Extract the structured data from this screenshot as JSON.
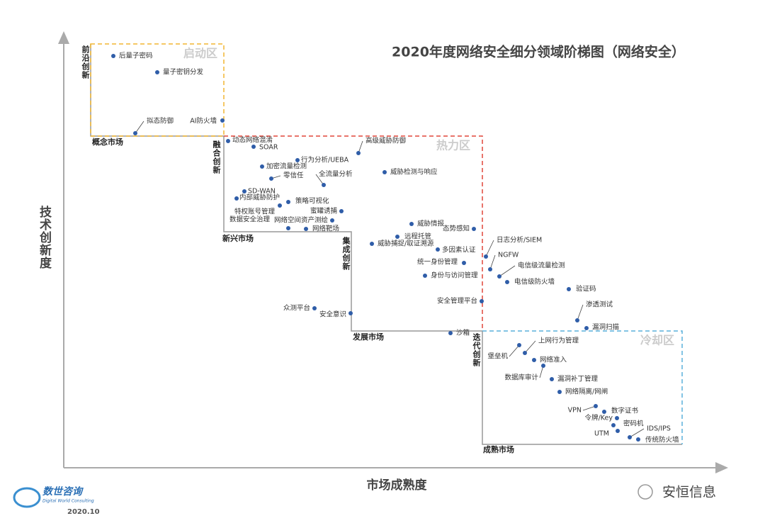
{
  "title": "2020年度网络安全细分领域阶梯图（网络安全）",
  "axes": {
    "y_label": "技术创新度",
    "x_label": "市场成熟度"
  },
  "zones": [
    {
      "label": "启动区"
    },
    {
      "label": "热力区"
    },
    {
      "label": "冷却区"
    }
  ],
  "stages": [
    {
      "label": "前沿创新"
    },
    {
      "label": "概念市场"
    },
    {
      "label": "融合创新"
    },
    {
      "label": "新兴市场"
    },
    {
      "label": "集成创新"
    },
    {
      "label": "发展市场"
    },
    {
      "label": "迭代创新"
    },
    {
      "label": "成熟市场"
    }
  ],
  "nodes": [
    {
      "label": "后量子密码"
    },
    {
      "label": "量子密钥分发"
    },
    {
      "label": "拟态防御"
    },
    {
      "label": "AI防火墙"
    },
    {
      "label": "动态网络混淆"
    },
    {
      "label": "SOAR"
    },
    {
      "label": "行为分析/UEBA"
    },
    {
      "label": "加密流量检测"
    },
    {
      "label": "零信任"
    },
    {
      "label": "全流量分析"
    },
    {
      "label": "高级威胁防御"
    },
    {
      "label": "威胁检测与响应"
    },
    {
      "label": "SD-WAN"
    },
    {
      "label": "内部威胁防护"
    },
    {
      "label": "策略可视化"
    },
    {
      "label": "特权账号管理"
    },
    {
      "label": "蜜罐诱捕"
    },
    {
      "label": "数据安全治理"
    },
    {
      "label": "网络空间资产测绘"
    },
    {
      "label": "网络靶场"
    },
    {
      "label": "威胁情报"
    },
    {
      "label": "态势感知"
    },
    {
      "label": "远程托管"
    },
    {
      "label": "威胁捕捉/取证溯源"
    },
    {
      "label": "多因素认证"
    },
    {
      "label": "统一身份管理"
    },
    {
      "label": "身份与访问管理"
    },
    {
      "label": "安全管理平台"
    },
    {
      "label": "日志分析/SIEM"
    },
    {
      "label": "NGFW"
    },
    {
      "label": "电信级流量检测"
    },
    {
      "label": "电信级防火墙"
    },
    {
      "label": "验证码"
    },
    {
      "label": "渗透测试"
    },
    {
      "label": "漏洞扫描"
    },
    {
      "label": "众测平台"
    },
    {
      "label": "安全意识"
    },
    {
      "label": "沙箱"
    },
    {
      "label": "堡垒机"
    },
    {
      "label": "上网行为管理"
    },
    {
      "label": "网络准入"
    },
    {
      "label": "数据库审计"
    },
    {
      "label": "漏洞补丁管理"
    },
    {
      "label": "网络隔离/网闸"
    },
    {
      "label": "VPN"
    },
    {
      "label": "数字证书"
    },
    {
      "label": "令牌/Key"
    },
    {
      "label": "密码机"
    },
    {
      "label": "UTM"
    },
    {
      "label": "IDS/IPS"
    },
    {
      "label": "传统防火墙"
    }
  ],
  "logo": {
    "name": "数世咨询",
    "subtitle": "Digital World Consulting",
    "date": "2020.10"
  },
  "watermark": "安恒信息"
}
